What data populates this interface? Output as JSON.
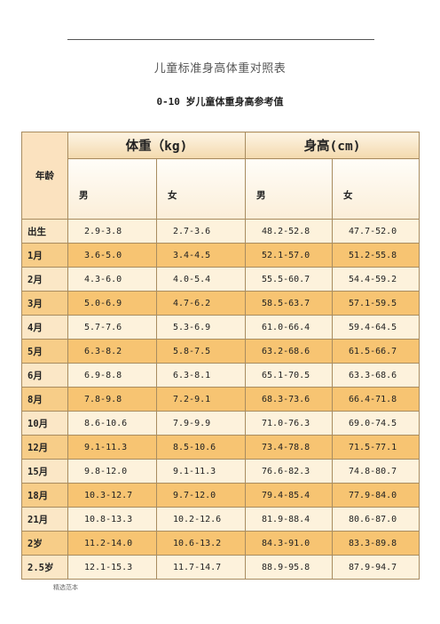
{
  "document": {
    "title": "儿童标准身高体重对照表",
    "subtitle": "0-10 岁儿童体重身高参考值",
    "footer": "精选范本"
  },
  "table": {
    "age_header": "年龄",
    "weight_header": "体重（kg)",
    "height_header": "身高(cm)",
    "male": "男",
    "female": "女",
    "rows": [
      {
        "age": "出生",
        "w_m": "2.9-3.8",
        "w_f": "2.7-3.6",
        "h_m": "48.2-52.8",
        "h_f": "47.7-52.0"
      },
      {
        "age": "1月",
        "w_m": "3.6-5.0",
        "w_f": "3.4-4.5",
        "h_m": "52.1-57.0",
        "h_f": "51.2-55.8"
      },
      {
        "age": "2月",
        "w_m": "4.3-6.0",
        "w_f": "4.0-5.4",
        "h_m": "55.5-60.7",
        "h_f": "54.4-59.2"
      },
      {
        "age": "3月",
        "w_m": "5.0-6.9",
        "w_f": "4.7-6.2",
        "h_m": "58.5-63.7",
        "h_f": "57.1-59.5"
      },
      {
        "age": "4月",
        "w_m": "5.7-7.6",
        "w_f": "5.3-6.9",
        "h_m": "61.0-66.4",
        "h_f": "59.4-64.5"
      },
      {
        "age": "5月",
        "w_m": "6.3-8.2",
        "w_f": "5.8-7.5",
        "h_m": "63.2-68.6",
        "h_f": "61.5-66.7"
      },
      {
        "age": "6月",
        "w_m": "6.9-8.8",
        "w_f": "6.3-8.1",
        "h_m": "65.1-70.5",
        "h_f": "63.3-68.6"
      },
      {
        "age": "8月",
        "w_m": "7.8-9.8",
        "w_f": "7.2-9.1",
        "h_m": "68.3-73.6",
        "h_f": "66.4-71.8"
      },
      {
        "age": "10月",
        "w_m": "8.6-10.6",
        "w_f": "7.9-9.9",
        "h_m": "71.0-76.3",
        "h_f": "69.0-74.5"
      },
      {
        "age": "12月",
        "w_m": "9.1-11.3",
        "w_f": "8.5-10.6",
        "h_m": "73.4-78.8",
        "h_f": "71.5-77.1"
      },
      {
        "age": "15月",
        "w_m": "9.8-12.0",
        "w_f": "9.1-11.3",
        "h_m": "76.6-82.3",
        "h_f": "74.8-80.7"
      },
      {
        "age": "18月",
        "w_m": "10.3-12.7",
        "w_f": "9.7-12.0",
        "h_m": "79.4-85.4",
        "h_f": "77.9-84.0"
      },
      {
        "age": "21月",
        "w_m": "10.8-13.3",
        "w_f": "10.2-12.6",
        "h_m": "81.9-88.4",
        "h_f": "80.6-87.0"
      },
      {
        "age": "2岁",
        "w_m": "11.2-14.0",
        "w_f": "10.6-13.2",
        "h_m": "84.3-91.0",
        "h_f": "83.3-89.8"
      },
      {
        "age": "2.5岁",
        "w_m": "12.1-15.3",
        "w_f": "11.7-14.7",
        "h_m": "88.9-95.8",
        "h_f": "87.9-94.7"
      }
    ]
  }
}
